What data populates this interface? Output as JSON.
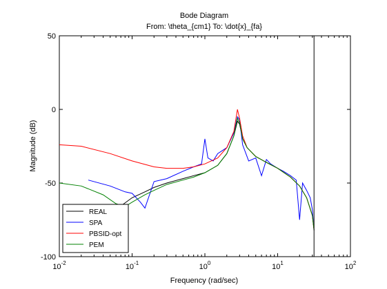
{
  "chart_data": {
    "type": "line",
    "title": "Bode Diagram",
    "subtitle": "From: \\theta_{cm1}  To: \\dot{x}_{fa}",
    "xlabel": "Frequency  (rad/sec)",
    "ylabel": "Magnitude (dB)",
    "xscale": "log",
    "xlim": [
      0.01,
      100
    ],
    "ylim": [
      -100,
      50
    ],
    "xticks": [
      {
        "value": 0.01,
        "base": "10",
        "exp": "-2"
      },
      {
        "value": 0.1,
        "base": "10",
        "exp": "-1"
      },
      {
        "value": 1,
        "base": "10",
        "exp": "0"
      },
      {
        "value": 10,
        "base": "10",
        "exp": "1"
      },
      {
        "value": 100,
        "base": "10",
        "exp": "2"
      }
    ],
    "yticks": [
      50,
      0,
      -50,
      -100
    ],
    "grid": false,
    "legend_position": "bottom-left",
    "vertical_line_x": 31.6,
    "series": [
      {
        "name": "REAL",
        "color": "#000000",
        "x": [
          0.06,
          0.1,
          0.15,
          0.2,
          0.3,
          0.5,
          0.7,
          1.0,
          1.5,
          2.0,
          2.5,
          2.8,
          3.0,
          3.3,
          3.8,
          5,
          7,
          10,
          15,
          20,
          25,
          30,
          31.6
        ],
        "y": [
          -68,
          -60,
          -56,
          -53,
          -50,
          -47,
          -45,
          -43,
          -38,
          -30,
          -18,
          -8,
          -10,
          -20,
          -26,
          -32,
          -36,
          -40,
          -46,
          -52,
          -60,
          -72,
          -82
        ]
      },
      {
        "name": "SPA",
        "color": "#0000ff",
        "x": [
          0.025,
          0.05,
          0.08,
          0.1,
          0.13,
          0.15,
          0.2,
          0.3,
          0.5,
          0.7,
          0.9,
          1.0,
          1.1,
          1.3,
          1.5,
          2.0,
          2.5,
          2.8,
          3.0,
          3.3,
          4,
          5,
          6,
          7,
          8,
          10,
          12,
          15,
          18,
          20,
          22,
          25,
          28,
          30,
          31.6
        ],
        "y": [
          -48,
          -52,
          -56,
          -57,
          -63,
          -67,
          -49,
          -47,
          -42,
          -39,
          -37,
          -20,
          -33,
          -35,
          -30,
          -26,
          -16,
          -5,
          -7,
          -24,
          -35,
          -33,
          -45,
          -34,
          -37,
          -40,
          -42,
          -45,
          -48,
          -75,
          -50,
          -55,
          -60,
          -68,
          -82
        ]
      },
      {
        "name": "PBSID-opt",
        "color": "#ff0000",
        "x": [
          0.01,
          0.02,
          0.05,
          0.1,
          0.2,
          0.3,
          0.5,
          0.7,
          1.0,
          1.5,
          2.0,
          2.5,
          2.8,
          3.0,
          3.3,
          3.8,
          5,
          7,
          10,
          15,
          20,
          25,
          30,
          31.6
        ],
        "y": [
          -24,
          -25,
          -30,
          -35,
          -39,
          -40,
          -40,
          -39,
          -37,
          -33,
          -26,
          -15,
          0,
          -6,
          -18,
          -26,
          -32,
          -36,
          -40,
          -46,
          -52,
          -60,
          -72,
          -82
        ]
      },
      {
        "name": "PEM",
        "color": "#008000",
        "x": [
          0.01,
          0.02,
          0.04,
          0.06,
          0.08,
          0.1,
          0.15,
          0.2,
          0.3,
          0.5,
          0.7,
          1.0,
          1.5,
          2.0,
          2.5,
          2.8,
          3.0,
          3.3,
          3.8,
          5,
          7,
          10,
          15,
          20,
          25,
          30,
          31.6
        ],
        "y": [
          -50,
          -52,
          -58,
          -64,
          -66,
          -63,
          -58,
          -55,
          -51,
          -48,
          -46,
          -43,
          -38,
          -30,
          -18,
          -6,
          -9,
          -20,
          -26,
          -32,
          -36,
          -40,
          -46,
          -52,
          -60,
          -72,
          -82
        ]
      }
    ]
  }
}
